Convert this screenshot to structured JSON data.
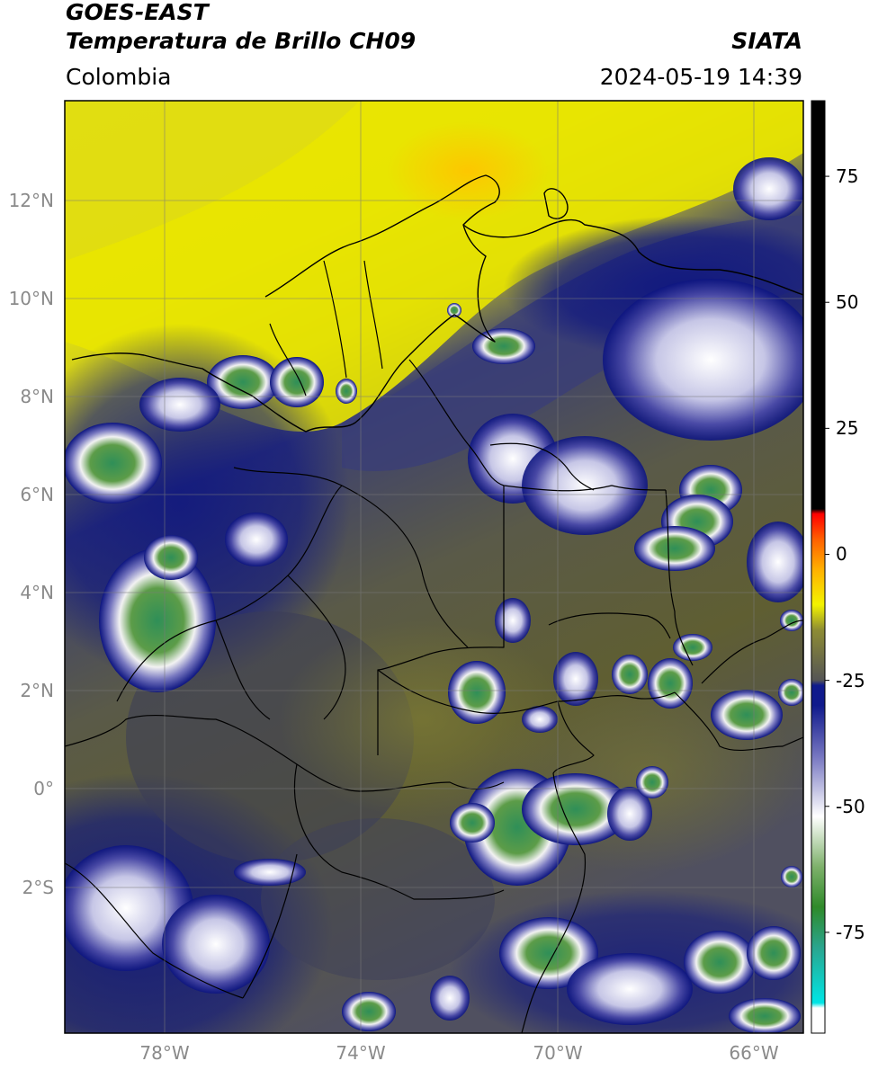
{
  "header": {
    "title_line1": "GOES-EAST",
    "title_line2": "Temperatura de Brillo CH09",
    "organization": "SIATA",
    "region": "Colombia",
    "timestamp": "2024-05-19 14:39"
  },
  "map": {
    "lat_labels": [
      "12°N",
      "10°N",
      "8°N",
      "6°N",
      "4°N",
      "2°N",
      "0°",
      "2°S"
    ],
    "lon_labels": [
      "78°W",
      "74°W",
      "70°W",
      "66°W"
    ],
    "colors": {
      "warm_dry": "#e9e600",
      "very_warm": "#ffc800",
      "mid_olive": "#5f5e32",
      "dark_slate": "#3a3d58",
      "navy": "#0d1580",
      "cold_white": "#f2f2f2",
      "cold_green": "#4a8f3a",
      "borders": "#000000"
    }
  },
  "colorbar": {
    "tick_labels": [
      "75",
      "50",
      "25",
      "0",
      "-25",
      "-50",
      "-75"
    ],
    "tick_values": [
      75,
      50,
      25,
      0,
      -25,
      -50,
      -75
    ],
    "range": [
      -95,
      90
    ],
    "stops": [
      {
        "v": -95,
        "c": "#ffffff"
      },
      {
        "v": -90,
        "c": "#ffffff"
      },
      {
        "v": -89,
        "c": "#00e5e5"
      },
      {
        "v": -78,
        "c": "#2aa58e"
      },
      {
        "v": -70,
        "c": "#2f8a2a"
      },
      {
        "v": -62,
        "c": "#7eb16b"
      },
      {
        "v": -52,
        "c": "#ffffff"
      },
      {
        "v": -40,
        "c": "#7575c0"
      },
      {
        "v": -30,
        "c": "#101a8c"
      },
      {
        "v": -26,
        "c": "#101a8c"
      },
      {
        "v": -25,
        "c": "#555555"
      },
      {
        "v": -15,
        "c": "#8d8c34"
      },
      {
        "v": -10,
        "c": "#f3f300"
      },
      {
        "v": -3,
        "c": "#ffb000"
      },
      {
        "v": 3,
        "c": "#ff6000"
      },
      {
        "v": 8,
        "c": "#ff0000"
      },
      {
        "v": 9,
        "c": "#000000"
      },
      {
        "v": 90,
        "c": "#000000"
      }
    ]
  }
}
